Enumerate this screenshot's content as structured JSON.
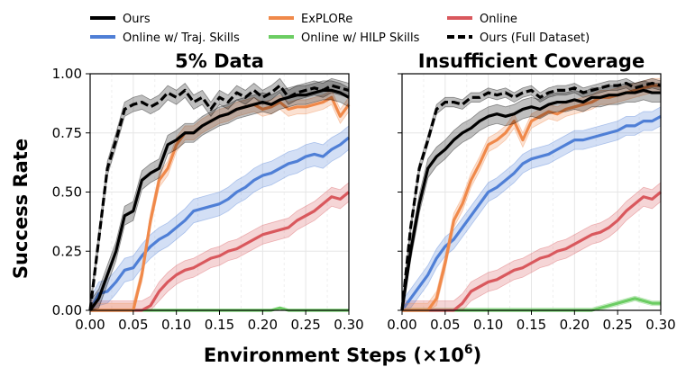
{
  "chart_data": {
    "type": "line",
    "xlabel": "Environment Steps (×10",
    "xlabel_exp": "6",
    "xlabel_close": ")",
    "ylabel": "Success Rate",
    "xlim": [
      0.0,
      0.3
    ],
    "ylim": [
      0.0,
      1.0
    ],
    "xticks": [
      "0.00",
      "0.05",
      "0.10",
      "0.15",
      "0.20",
      "0.25",
      "0.30"
    ],
    "xtick_values": [
      0.0,
      0.05,
      0.1,
      0.15,
      0.2,
      0.25,
      0.3
    ],
    "yticks": [
      "0.00",
      "0.25",
      "0.50",
      "0.75",
      "1.00"
    ],
    "ytick_values": [
      0.0,
      0.25,
      0.5,
      0.75,
      1.0
    ],
    "legend": [
      {
        "name": "Ours",
        "color": "#000000",
        "dash": false
      },
      {
        "name": "ExPLORe",
        "color": "#f0894a",
        "dash": false
      },
      {
        "name": "Online",
        "color": "#d9585d",
        "dash": false
      },
      {
        "name": "Online w/ Traj. Skills",
        "color": "#4f7fd6",
        "dash": false
      },
      {
        "name": "Online w/ HILP Skills",
        "color": "#6ccd63",
        "dash": false
      },
      {
        "name": "Ours (Full Dataset)",
        "color": "#000000",
        "dash": true
      }
    ],
    "x": [
      0.0,
      0.01,
      0.02,
      0.03,
      0.04,
      0.05,
      0.06,
      0.07,
      0.08,
      0.09,
      0.1,
      0.11,
      0.12,
      0.13,
      0.14,
      0.15,
      0.16,
      0.17,
      0.18,
      0.19,
      0.2,
      0.21,
      0.22,
      0.23,
      0.24,
      0.25,
      0.26,
      0.27,
      0.28,
      0.29,
      0.3
    ],
    "panels": [
      {
        "title": "5% Data",
        "series": [
          {
            "name": "Ours",
            "values": [
              0.0,
              0.05,
              0.15,
              0.25,
              0.4,
              0.42,
              0.55,
              0.58,
              0.6,
              0.7,
              0.72,
              0.75,
              0.75,
              0.78,
              0.8,
              0.82,
              0.83,
              0.85,
              0.86,
              0.87,
              0.88,
              0.87,
              0.89,
              0.9,
              0.91,
              0.91,
              0.92,
              0.93,
              0.93,
              0.92,
              0.9
            ],
            "err": 0.04
          },
          {
            "name": "ExPLORe",
            "values": [
              0.0,
              0.0,
              0.0,
              0.0,
              0.0,
              0.0,
              0.15,
              0.38,
              0.55,
              0.6,
              0.7,
              0.75,
              0.75,
              0.78,
              0.8,
              0.82,
              0.83,
              0.85,
              0.86,
              0.87,
              0.85,
              0.86,
              0.88,
              0.85,
              0.86,
              0.86,
              0.87,
              0.88,
              0.9,
              0.82,
              0.87
            ],
            "err": 0.03
          },
          {
            "name": "Online",
            "values": [
              0.0,
              0.0,
              0.0,
              0.0,
              0.0,
              0.0,
              0.0,
              0.02,
              0.08,
              0.12,
              0.15,
              0.17,
              0.18,
              0.2,
              0.22,
              0.23,
              0.25,
              0.26,
              0.28,
              0.3,
              0.32,
              0.33,
              0.34,
              0.35,
              0.38,
              0.4,
              0.42,
              0.45,
              0.48,
              0.47,
              0.5
            ],
            "err": 0.04
          },
          {
            "name": "Online w/ Traj. Skills",
            "values": [
              0.0,
              0.07,
              0.08,
              0.12,
              0.17,
              0.18,
              0.23,
              0.27,
              0.3,
              0.32,
              0.35,
              0.38,
              0.42,
              0.43,
              0.44,
              0.45,
              0.47,
              0.5,
              0.52,
              0.55,
              0.57,
              0.58,
              0.6,
              0.62,
              0.63,
              0.65,
              0.66,
              0.65,
              0.68,
              0.7,
              0.73
            ],
            "err": 0.05
          },
          {
            "name": "Online w/ HILP Skills",
            "values": [
              0.0,
              0.0,
              0.0,
              0.0,
              0.0,
              0.0,
              0.0,
              0.0,
              0.0,
              0.0,
              0.0,
              0.0,
              0.0,
              0.0,
              0.0,
              0.0,
              0.0,
              0.0,
              0.0,
              0.0,
              0.0,
              0.0,
              0.01,
              0.0,
              0.0,
              0.0,
              0.0,
              0.0,
              0.0,
              0.0,
              0.0
            ],
            "err": 0.005
          },
          {
            "name": "Ours (Full Dataset)",
            "values": [
              0.0,
              0.3,
              0.6,
              0.72,
              0.85,
              0.87,
              0.88,
              0.86,
              0.88,
              0.92,
              0.9,
              0.93,
              0.88,
              0.9,
              0.85,
              0.9,
              0.88,
              0.92,
              0.9,
              0.93,
              0.9,
              0.92,
              0.95,
              0.9,
              0.92,
              0.93,
              0.94,
              0.93,
              0.95,
              0.94,
              0.93
            ],
            "err": 0.03
          }
        ]
      },
      {
        "title": "Insufficient Coverage",
        "series": [
          {
            "name": "Ours",
            "values": [
              0.0,
              0.25,
              0.45,
              0.6,
              0.65,
              0.68,
              0.72,
              0.75,
              0.77,
              0.8,
              0.82,
              0.83,
              0.82,
              0.83,
              0.85,
              0.86,
              0.85,
              0.87,
              0.88,
              0.88,
              0.89,
              0.88,
              0.9,
              0.9,
              0.91,
              0.91,
              0.92,
              0.92,
              0.93,
              0.92,
              0.92
            ],
            "err": 0.04
          },
          {
            "name": "ExPLORe",
            "values": [
              0.0,
              0.0,
              0.0,
              0.0,
              0.05,
              0.2,
              0.38,
              0.45,
              0.55,
              0.62,
              0.7,
              0.72,
              0.75,
              0.8,
              0.72,
              0.8,
              0.82,
              0.84,
              0.83,
              0.85,
              0.86,
              0.87,
              0.88,
              0.9,
              0.9,
              0.91,
              0.92,
              0.93,
              0.94,
              0.95,
              0.95
            ],
            "err": 0.03
          },
          {
            "name": "Online",
            "values": [
              0.0,
              0.0,
              0.0,
              0.0,
              0.0,
              0.0,
              0.0,
              0.03,
              0.08,
              0.1,
              0.12,
              0.13,
              0.15,
              0.17,
              0.18,
              0.2,
              0.22,
              0.23,
              0.25,
              0.26,
              0.28,
              0.3,
              0.32,
              0.33,
              0.35,
              0.38,
              0.42,
              0.45,
              0.48,
              0.47,
              0.5
            ],
            "err": 0.04
          },
          {
            "name": "Online w/ Traj. Skills",
            "values": [
              0.0,
              0.05,
              0.1,
              0.15,
              0.22,
              0.27,
              0.3,
              0.35,
              0.4,
              0.45,
              0.5,
              0.52,
              0.55,
              0.58,
              0.62,
              0.64,
              0.65,
              0.66,
              0.68,
              0.7,
              0.72,
              0.72,
              0.73,
              0.74,
              0.75,
              0.76,
              0.78,
              0.78,
              0.8,
              0.8,
              0.82
            ],
            "err": 0.04
          },
          {
            "name": "Online w/ HILP Skills",
            "values": [
              0.0,
              0.0,
              0.0,
              0.0,
              0.0,
              0.0,
              0.0,
              0.0,
              0.0,
              0.0,
              0.0,
              0.0,
              0.0,
              0.0,
              0.0,
              0.0,
              0.0,
              0.0,
              0.0,
              0.0,
              0.0,
              0.0,
              0.0,
              0.01,
              0.02,
              0.03,
              0.04,
              0.05,
              0.04,
              0.03,
              0.03
            ],
            "err": 0.01
          },
          {
            "name": "Ours (Full Dataset)",
            "values": [
              0.0,
              0.35,
              0.6,
              0.72,
              0.85,
              0.88,
              0.88,
              0.87,
              0.9,
              0.9,
              0.92,
              0.91,
              0.92,
              0.9,
              0.92,
              0.93,
              0.9,
              0.92,
              0.93,
              0.93,
              0.94,
              0.92,
              0.93,
              0.94,
              0.95,
              0.95,
              0.96,
              0.94,
              0.95,
              0.96,
              0.95
            ],
            "err": 0.02
          }
        ]
      }
    ]
  }
}
